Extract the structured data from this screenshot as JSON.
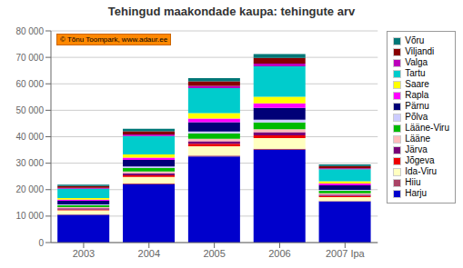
{
  "chart_data": {
    "type": "bar",
    "stacked": true,
    "grid": true,
    "legend": "right",
    "title": "Tehingud maakondade kaupa: tehingute arv",
    "annotations": [
      "© Tõnu Toompark, www.adaur.ee"
    ],
    "categories": [
      "2003",
      "2004",
      "2005",
      "2006",
      "2007 Ipa"
    ],
    "series": [
      {
        "name": "Harju",
        "color": "#0000CC",
        "values": [
          10500,
          22000,
          32500,
          35000,
          15500
        ]
      },
      {
        "name": "Hiiu",
        "color": "#AA4466",
        "values": [
          200,
          300,
          400,
          450,
          200
        ]
      },
      {
        "name": "Ida-Viru",
        "color": "#FFFFC0",
        "values": [
          1500,
          2500,
          3500,
          4000,
          1500
        ]
      },
      {
        "name": "Jõgeva",
        "color": "#EE0000",
        "values": [
          350,
          650,
          900,
          1100,
          450
        ]
      },
      {
        "name": "Järva",
        "color": "#770077",
        "values": [
          450,
          750,
          1000,
          1200,
          500
        ]
      },
      {
        "name": "Lääne",
        "color": "#FFBBBB",
        "values": [
          350,
          650,
          900,
          1100,
          450
        ]
      },
      {
        "name": "Lääne-Viru",
        "color": "#00BB00",
        "values": [
          700,
          1300,
          2000,
          2600,
          1000
        ]
      },
      {
        "name": "Põlva",
        "color": "#CCCCFF",
        "values": [
          350,
          600,
          800,
          950,
          350
        ]
      },
      {
        "name": "Pärnu",
        "color": "#000077",
        "values": [
          1400,
          2500,
          3500,
          4500,
          1700
        ]
      },
      {
        "name": "Rapla",
        "color": "#FF00FF",
        "values": [
          450,
          850,
          1400,
          1700,
          650
        ]
      },
      {
        "name": "Saare",
        "color": "#FFFF00",
        "values": [
          600,
          1200,
          2000,
          2500,
          900
        ]
      },
      {
        "name": "Tartu",
        "color": "#00CCCC",
        "values": [
          3500,
          7000,
          9500,
          11500,
          4500
        ]
      },
      {
        "name": "Valga",
        "color": "#BB00BB",
        "values": [
          350,
          600,
          850,
          1050,
          400
        ]
      },
      {
        "name": "Viljandi",
        "color": "#880000",
        "values": [
          700,
          1200,
          1700,
          2100,
          800
        ]
      },
      {
        "name": "Võru",
        "color": "#007777",
        "values": [
          500,
          900,
          1200,
          1500,
          600
        ]
      }
    ],
    "ylim": [
      0,
      80000
    ],
    "yticks": [
      0,
      {
        "value": 10000,
        "label": "10 000"
      },
      {
        "value": 20000,
        "label": "20 000"
      },
      {
        "value": 30000,
        "label": "30 000"
      },
      {
        "value": 40000,
        "label": "40 000"
      },
      {
        "value": 50000,
        "label": "50 000"
      },
      {
        "value": 60000,
        "label": "60 000"
      },
      {
        "value": 70000,
        "label": "70 000"
      },
      {
        "value": 80000,
        "label": "80 000"
      }
    ]
  }
}
